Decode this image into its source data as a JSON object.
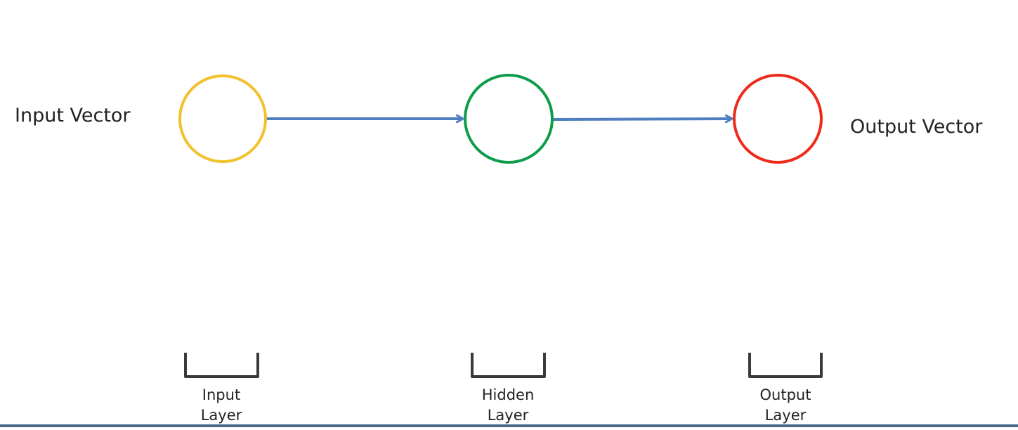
{
  "diagram": {
    "input_vector_label": "Input Vector",
    "output_vector_label": "Output Vector",
    "layers": [
      {
        "id": "input",
        "line1": "Input",
        "line2": "Layer",
        "color": "#F2C12E"
      },
      {
        "id": "hidden",
        "line1": "Hidden",
        "line2": "Layer",
        "color": "#0E9C4A"
      },
      {
        "id": "output",
        "line1": "Output",
        "line2": "Layer",
        "color": "#EE2B1B"
      }
    ],
    "arrow_color": "#4F7FC0",
    "bracket_color": "#3A3A3A"
  },
  "bottom_bar_color": "#4A6A8A"
}
